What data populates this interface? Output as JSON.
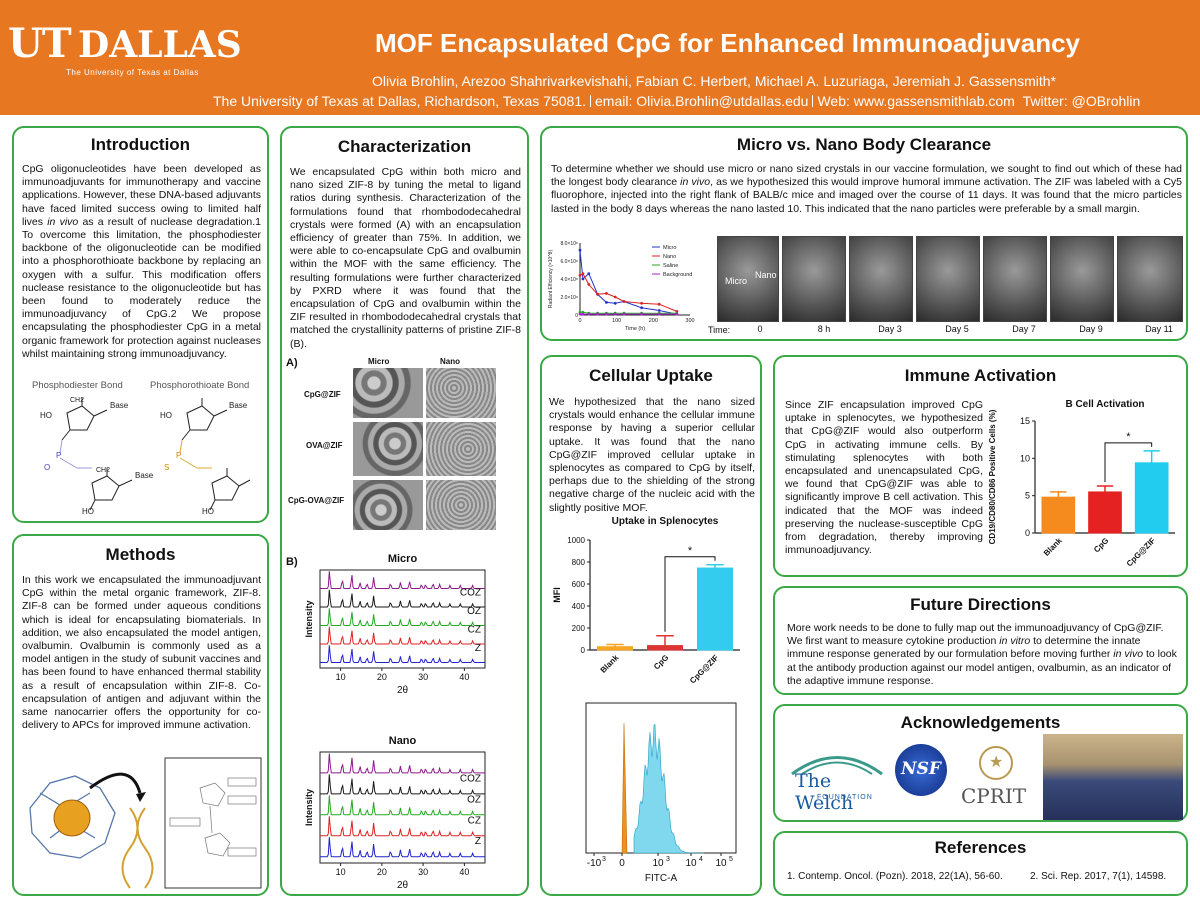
{
  "header": {
    "logo_ut": "UT",
    "logo_dallas": "DALLAS",
    "logo_tagline": "The University of Texas at Dallas",
    "title": "MOF Encapsulated CpG for Enhanced Immunoadjuvancy",
    "authors": "Olivia Brohlin, Arezoo Shahrivarkevishahi, Fabian C. Herbert, Michael A. Luzuriaga, Jeremiah J. Gassensmith*",
    "affiliation": "The University of Texas at Dallas, Richardson, Texas 75081.",
    "email": "email: Olivia.Brohlin@utdallas.edu",
    "web": "Web: www.gassensmithlab.com",
    "twitter": "Twitter: @OBrohlin",
    "brand_color": "#e87722",
    "panel_border_color": "#3aa844"
  },
  "introduction": {
    "title": "Introduction",
    "text": "CpG oligonucleotides have been developed as immunoadjuvants for immunotherapy and vaccine applications. However, these DNA-based adjuvants have faced limited success owing to limited half lives in vivo as a result of nuclease degradation.1 To overcome this limitation, the phosphodiester backbone of the oligonucleotide can be modified into a phosphorothioate backbone by replacing an oxygen with a sulfur. This modification offers nuclease resistance to the oligonucleotide but has been found to moderately reduce the immunoadjuvancy of CpG.2 We propose encapsulating the phosphodiester CpG in a metal organic framework for protection against nucleases whilst maintaining strong immunoadjuvancy.",
    "bond1": "Phosphodiester Bond",
    "bond2": "Phosphorothioate Bond",
    "chem_base": "Base",
    "chem_ho": "HO",
    "chem_ch2": "CH2",
    "chem_o": "O",
    "chem_p": "P",
    "chem_s": "S"
  },
  "methods": {
    "title": "Methods",
    "text": "In this work we encapsulated the immunoadjuvant CpG within the metal organic framework, ZIF-8. ZIF-8 can be formed under aqueous conditions which is ideal for encapsulating biomaterials. In addition, we also encapsulated the model antigen, ovalbumin. Ovalbumin is commonly used as a model antigen in the study of subunit vaccines and has been found to have enhanced thermal stability as a result of encapsulation within ZIF-8. Co-encapsulation of antigen and adjuvant within the same nanocarrier offers the opportunity for co-delivery to APCs for improved immune activation."
  },
  "characterization": {
    "title": "Characterization",
    "text": "We encapsulated CpG within both micro and nano sized ZIF-8 by tuning the metal to ligand ratios during synthesis. Characterization of the formulations found that rhombododecahedral crystals were formed (A) with an encapsulation efficiency of greater than 75%. In addition, we were able to co-encapsulate CpG and ovalbumin within the MOF with the same efficiency. The resulting formulations were further characterized by PXRD where it was found that the encapsulation of CpG and ovalbumin within the ZIF resulted in rhombododecahedral crystals that matched the crystallinity patterns of pristine ZIF-8 (B).",
    "label_a": "A)",
    "label_b": "B)",
    "col_micro": "Micro",
    "col_nano": "Nano",
    "rows": [
      "CpG@ZIF",
      "OVA@ZIF",
      "CpG-OVA@ZIF"
    ],
    "pxrd_micro_title": "Micro",
    "pxrd_nano_title": "Nano",
    "pxrd_ylabel": "Intensity",
    "pxrd_xlabel": "2θ",
    "pxrd_xticks": [
      "10",
      "20",
      "30",
      "40"
    ],
    "pxrd_series": [
      "COZ",
      "OZ",
      "CZ",
      "Z"
    ],
    "pxrd_colors": [
      "#8b1a8b",
      "#1a1a1a",
      "#22aa22",
      "#dd2222",
      "#2222cc"
    ]
  },
  "clearance": {
    "title": "Micro vs. Nano Body Clearance",
    "text": "To determine whether we should use micro or nano sized crystals in our vaccine formulation, we sought to find out which of these had the longest body clearance in vivo, as we hypothesized this would improve humoral immune activation. The ZIF was labeled with a Cy5 fluorophore, injected into the right flank of BALB/c mice and imaged over the course of 11 days. It was found that the micro particles lasted in the body 8 days whereas the nano lasted 10. This indicated that the nano particles were preferable by a small margin.",
    "time_label": "Time:",
    "times": [
      "0",
      "8 h",
      "Day 3",
      "Day 5",
      "Day 7",
      "Day 9",
      "Day 11"
    ],
    "mouse_micro": "Micro",
    "mouse_nano": "Nano"
  },
  "uptake": {
    "title": "Cellular Uptake",
    "text": "We hypothesized that the nano sized crystals would enhance the cellular immune response by having a superior cellular uptake. It was found that the nano CpG@ZIF improved cellular uptake in splenocytes as compared to CpG by itself, perhaps due to the shielding of the strong negative charge of the nucleic acid with the slightly positive MOF.",
    "flow_xlabel": "FITC-A",
    "flow_xticks": [
      "-10",
      "0",
      "10",
      "10",
      "10",
      "10"
    ],
    "flow_exps": [
      "3",
      "3",
      "4",
      "5"
    ]
  },
  "immune": {
    "title": "Immune Activation",
    "text": "Since ZIF encapsulation improved CpG uptake in splenocytes, we hypothesized that CpG@ZIF would also outperform CpG in activating immune cells. By stimulating splenocytes with both encapsulated and unencapsulated CpG, we found that CpG@ZIF was able to significantly improve B cell activation. This indicated that the MOF was indeed preserving the nuclease-susceptible CpG from degradation, thereby improving immunoadjuvancy."
  },
  "future": {
    "title": "Future Directions",
    "text": "More work needs to be done to fully map out the immunoadjuvancy of CpG@ZIF. We first want to measure cytokine production in vitro to determine the innate immune response generated by our formulation before moving further in vivo to look at the antibody production against our model antigen, ovalbumin, as an indicator of the adaptive immune response."
  },
  "acknowledgements": {
    "title": "Acknowledgements",
    "welch_name": "The Welch",
    "welch_sub": "FOUNDATION",
    "nsf": "NSF",
    "cprit": "CPRIT"
  },
  "references": {
    "title": "References",
    "ref1": "1. Contemp. Oncol. (Pozn). 2018, 22(1A), 56-60.",
    "ref2": "2. Sci. Rep. 2017, 7(1), 14598."
  },
  "chart_data": [
    {
      "type": "line",
      "id": "radiant-efficiency",
      "ylabel": "Radiant Efficiency (×10^8)",
      "xlabel": "Time (h)",
      "xlim": [
        0,
        300
      ],
      "ylim": [
        0,
        8
      ],
      "yticks": [
        "0",
        "2.0×10⁸",
        "4.0×10⁸",
        "6.0×10⁸",
        "8.0×10⁸"
      ],
      "xticks": [
        "0",
        "100",
        "200",
        "300"
      ],
      "legend_position": "top-right",
      "series": [
        {
          "name": "Micro",
          "color": "#2233cc",
          "x": [
            0,
            8,
            24,
            48,
            72,
            96,
            120,
            168,
            216,
            264
          ],
          "y": [
            7.2,
            4.0,
            4.6,
            2.3,
            1.4,
            1.3,
            1.5,
            0.8,
            0.5,
            0.1
          ]
        },
        {
          "name": "Nano",
          "color": "#dd2222",
          "x": [
            0,
            8,
            24,
            48,
            72,
            96,
            120,
            168,
            216,
            264
          ],
          "y": [
            4.4,
            4.6,
            3.4,
            2.3,
            2.4,
            2.0,
            1.5,
            1.3,
            1.2,
            0.4
          ]
        },
        {
          "name": "Saline",
          "color": "#22aa22",
          "x": [
            0,
            8,
            24,
            48,
            72,
            96,
            120,
            168,
            216,
            264
          ],
          "y": [
            0.3,
            0.3,
            0.2,
            0.2,
            0.2,
            0.2,
            0.2,
            0.2,
            0.2,
            0.2
          ]
        },
        {
          "name": "Background",
          "color": "#aa22cc",
          "x": [
            0,
            8,
            24,
            48,
            72,
            96,
            120,
            168,
            216,
            264
          ],
          "y": [
            0.1,
            0.1,
            0.1,
            0.1,
            0.1,
            0.1,
            0.1,
            0.1,
            0.1,
            0.1
          ]
        }
      ]
    },
    {
      "type": "bar",
      "id": "uptake-splenocytes",
      "title": "Uptake in Splenocytes",
      "ylabel": "MFI",
      "ylim": [
        0,
        1000
      ],
      "yticks": [
        "0",
        "200",
        "400",
        "600",
        "800",
        "1000"
      ],
      "categories": [
        "Blank",
        "CpG",
        "CpG@ZIF"
      ],
      "values": [
        30,
        40,
        745
      ],
      "errors": [
        20,
        90,
        30
      ],
      "colors": [
        "#f5a623",
        "#dd3333",
        "#33ccee"
      ],
      "annotation": "*"
    },
    {
      "type": "bar",
      "id": "b-cell-activation",
      "title": "B Cell Activation",
      "ylabel": "CD19/CD80/CD86 Positive Cells (%)",
      "ylim": [
        0,
        15
      ],
      "yticks": [
        "0",
        "5",
        "10",
        "15"
      ],
      "categories": [
        "Blank",
        "CpG",
        "CpG@ZIF"
      ],
      "values": [
        4.8,
        5.5,
        9.4
      ],
      "errors": [
        0.7,
        0.8,
        1.6
      ],
      "colors": [
        "#f58a1f",
        "#e52222",
        "#22ccee"
      ],
      "annotation": "*"
    }
  ]
}
